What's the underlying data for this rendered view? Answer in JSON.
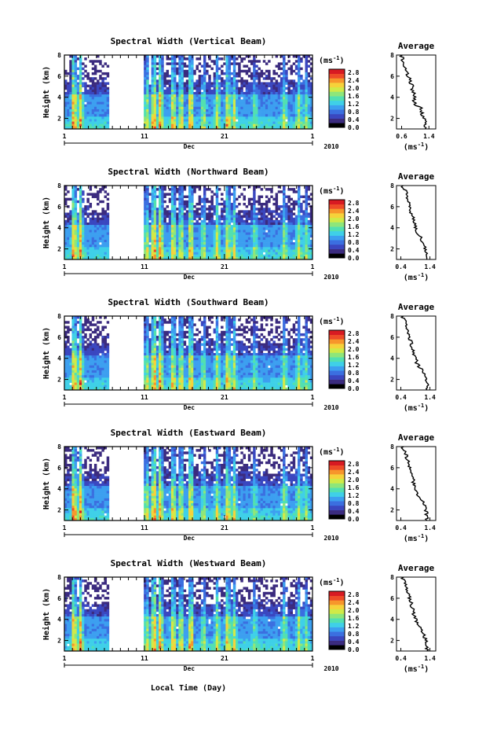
{
  "chart_data": {
    "type": "heatmap",
    "xlabel": "Local Time (Day)",
    "colors": [
      "#000000",
      "#3b2b7f",
      "#3a47c0",
      "#3b6fe0",
      "#3c9ff0",
      "#3fd0e8",
      "#52e0b0",
      "#8ee67a",
      "#d0ea48",
      "#f6d23a",
      "#f7962b",
      "#ee4b28",
      "#d81a22"
    ],
    "colorbar": {
      "unit": "(ms",
      "unit_exp": "-1",
      "unit_close": ")",
      "ticks": [
        "2.8",
        "2.4",
        "2.0",
        "1.6",
        "1.2",
        "0.8",
        "0.4",
        "0.0"
      ],
      "range": [
        0,
        3.0
      ]
    },
    "x_tick_labels": [
      "1",
      "11",
      "21",
      "1"
    ],
    "month_label": "Dec",
    "year_label": "2010",
    "ylabel": "Height (km)",
    "y_ticks": [
      "8",
      "6",
      "4",
      "2"
    ],
    "ylim": [
      1,
      8
    ],
    "xlim_days": [
      1,
      32
    ],
    "data_gap_days": [
      6.5,
      11
    ],
    "profile_title": "Average",
    "profile_xlabel": "(ms",
    "profile_xlabel_exp": "-1",
    "profile_xlabel_close": ")",
    "panels": [
      {
        "title": "Spectral Width (Vertical Beam)",
        "colorbar_ticks": [
          "2.8",
          "2.4",
          "2.0",
          "1.6",
          "1.2",
          "0.8",
          "0.4",
          "0.0"
        ],
        "profile_xticks": [
          "0.6",
          "1.4"
        ],
        "profile": {
          "height": [
            1.5,
            2.0,
            2.5,
            3.0,
            3.5,
            4.0,
            4.5,
            5.0,
            5.5,
            6.0,
            6.5,
            7.0,
            7.5,
            8.0
          ],
          "width": [
            1.3,
            1.25,
            1.2,
            1.15,
            0.95,
            1.0,
            0.95,
            0.9,
            0.85,
            0.8,
            0.75,
            0.7,
            0.65,
            0.6
          ]
        }
      },
      {
        "title": "Spectral Width (Northward Beam)",
        "colorbar_ticks": [
          "2.8",
          "2.4",
          "2.0",
          "1.6",
          "1.2",
          "0.8",
          "0.4",
          "0.0"
        ],
        "profile_xticks": [
          "0.4",
          "1.4"
        ],
        "profile": {
          "height": [
            1.5,
            2.0,
            2.5,
            3.0,
            3.5,
            4.0,
            4.5,
            5.0,
            5.5,
            6.0,
            6.5,
            7.0,
            7.5,
            8.0
          ],
          "width": [
            1.3,
            1.25,
            1.2,
            1.1,
            0.95,
            0.9,
            0.85,
            0.8,
            0.75,
            0.7,
            0.65,
            0.6,
            0.55,
            0.45
          ]
        }
      },
      {
        "title": "Spectral Width (Southward Beam)",
        "colorbar_ticks": [
          "2.8",
          "2.4",
          "2.0",
          "1.6",
          "1.2",
          "0.8",
          "0.4",
          "0.0"
        ],
        "profile_xticks": [
          "0.4",
          "1.4"
        ],
        "profile": {
          "height": [
            1.5,
            2.0,
            2.5,
            3.0,
            3.5,
            4.0,
            4.5,
            5.0,
            5.5,
            6.0,
            6.5,
            7.0,
            7.5,
            8.0
          ],
          "width": [
            1.3,
            1.25,
            1.2,
            1.1,
            0.95,
            0.9,
            0.85,
            0.8,
            0.75,
            0.7,
            0.65,
            0.6,
            0.55,
            0.45
          ]
        }
      },
      {
        "title": "Spectral Width (Eastward Beam)",
        "colorbar_ticks": [
          "2.8",
          "2.4",
          "2.0",
          "1.6",
          "1.2",
          "0.8",
          "0.4",
          "0.0"
        ],
        "profile_xticks": [
          "0.4",
          "1.4"
        ],
        "profile": {
          "height": [
            1.5,
            2.0,
            2.5,
            3.0,
            3.5,
            4.0,
            4.5,
            5.0,
            5.5,
            6.0,
            6.5,
            7.0,
            7.5,
            8.0
          ],
          "width": [
            1.3,
            1.25,
            1.2,
            1.1,
            0.95,
            0.9,
            0.85,
            0.8,
            0.75,
            0.7,
            0.65,
            0.6,
            0.55,
            0.45
          ]
        }
      },
      {
        "title": "Spectral Width (Westward Beam)",
        "colorbar_ticks": [
          "2.8",
          "2.4",
          "2.0",
          "1.6",
          "1.2",
          "0.8",
          "0.4",
          "0.0"
        ],
        "profile_xticks": [
          "0.4",
          "1.4"
        ],
        "profile": {
          "height": [
            1.5,
            2.0,
            2.5,
            3.0,
            3.5,
            4.0,
            4.5,
            5.0,
            5.5,
            6.0,
            6.5,
            7.0,
            7.5,
            8.0
          ],
          "width": [
            1.3,
            1.25,
            1.2,
            1.1,
            0.95,
            0.9,
            0.85,
            0.8,
            0.75,
            0.7,
            0.65,
            0.6,
            0.55,
            0.45
          ]
        }
      }
    ]
  }
}
